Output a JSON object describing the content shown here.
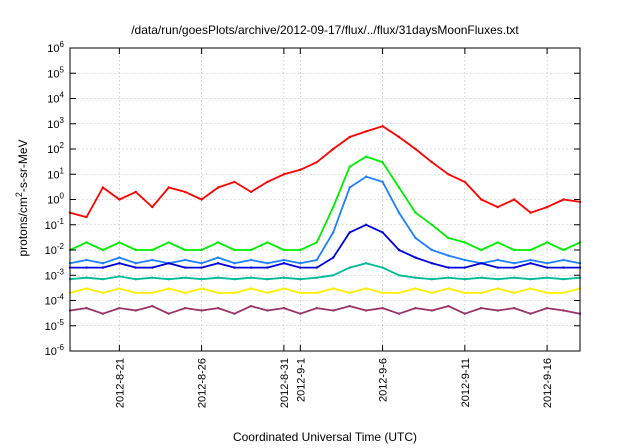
{
  "chart_data": {
    "type": "line",
    "title": "/data/run/goesPlots/archive/2012-09-17/flux/../flux/31daysMoonFluxes.txt",
    "xlabel": "Coordinated Universal Time (UTC)",
    "ylabel": {
      "pre": "protons/cm",
      "sup": "2",
      "post": "-s-sr-MeV"
    },
    "y_scale": "log",
    "ylim": [
      1e-06,
      1000000.0
    ],
    "y_ticks": [
      {
        "value": 1e-06,
        "base": "10",
        "exp": "-6"
      },
      {
        "value": 1e-05,
        "base": "10",
        "exp": "-5"
      },
      {
        "value": 0.0001,
        "base": "10",
        "exp": "-4"
      },
      {
        "value": 0.001,
        "base": "10",
        "exp": "-3"
      },
      {
        "value": 0.01,
        "base": "10",
        "exp": "-2"
      },
      {
        "value": 0.1,
        "base": "10",
        "exp": "-1"
      },
      {
        "value": 1.0,
        "base": "10",
        "exp": "0"
      },
      {
        "value": 10.0,
        "base": "10",
        "exp": "1"
      },
      {
        "value": 100.0,
        "base": "10",
        "exp": "2"
      },
      {
        "value": 1000.0,
        "base": "10",
        "exp": "3"
      },
      {
        "value": 10000.0,
        "base": "10",
        "exp": "4"
      },
      {
        "value": 100000.0,
        "base": "10",
        "exp": "5"
      },
      {
        "value": 1000000.0,
        "base": "10",
        "exp": "6"
      }
    ],
    "xlim": [
      "2012-08-18",
      "2012-09-18"
    ],
    "x_ticks": [
      {
        "date": "2012-08-21",
        "label": "2012-8-21"
      },
      {
        "date": "2012-08-26",
        "label": "2012-8-26"
      },
      {
        "date": "2012-08-31",
        "label": "2012-8-31"
      },
      {
        "date": "2012-09-01",
        "label": "2012-9-1"
      },
      {
        "date": "2012-09-06",
        "label": "2012-9-6"
      },
      {
        "date": "2012-09-11",
        "label": "2012-9-11"
      },
      {
        "date": "2012-09-16",
        "label": "2012-9-16"
      }
    ],
    "grid": true,
    "series": [
      {
        "color": "#ff0000",
        "x": [
          "2012-08-18",
          "2012-08-19",
          "2012-08-20",
          "2012-08-21",
          "2012-08-22",
          "2012-08-23",
          "2012-08-24",
          "2012-08-25",
          "2012-08-26",
          "2012-08-27",
          "2012-08-28",
          "2012-08-29",
          "2012-08-30",
          "2012-08-31",
          "2012-09-01",
          "2012-09-02",
          "2012-09-03",
          "2012-09-04",
          "2012-09-05",
          "2012-09-06",
          "2012-09-07",
          "2012-09-08",
          "2012-09-09",
          "2012-09-10",
          "2012-09-11",
          "2012-09-12",
          "2012-09-13",
          "2012-09-14",
          "2012-09-15",
          "2012-09-16",
          "2012-09-17",
          "2012-09-18"
        ],
        "values": [
          0.3,
          0.2,
          3,
          1,
          2,
          0.5,
          3,
          2,
          1,
          3,
          5,
          2,
          5,
          10,
          15,
          30,
          100,
          300,
          500,
          800,
          300,
          100,
          30,
          10,
          5,
          1,
          0.5,
          1,
          0.3,
          0.5,
          1,
          0.8
        ]
      },
      {
        "color": "#00ee00",
        "x": [
          "2012-08-18",
          "2012-08-19",
          "2012-08-20",
          "2012-08-21",
          "2012-08-22",
          "2012-08-23",
          "2012-08-24",
          "2012-08-25",
          "2012-08-26",
          "2012-08-27",
          "2012-08-28",
          "2012-08-29",
          "2012-08-30",
          "2012-08-31",
          "2012-09-01",
          "2012-09-02",
          "2012-09-03",
          "2012-09-04",
          "2012-09-05",
          "2012-09-06",
          "2012-09-07",
          "2012-09-08",
          "2012-09-09",
          "2012-09-10",
          "2012-09-11",
          "2012-09-12",
          "2012-09-13",
          "2012-09-14",
          "2012-09-15",
          "2012-09-16",
          "2012-09-17",
          "2012-09-18"
        ],
        "values": [
          0.01,
          0.02,
          0.01,
          0.02,
          0.01,
          0.01,
          0.02,
          0.01,
          0.01,
          0.02,
          0.01,
          0.01,
          0.02,
          0.01,
          0.01,
          0.02,
          0.5,
          20,
          50,
          30,
          3,
          0.3,
          0.1,
          0.03,
          0.02,
          0.01,
          0.02,
          0.01,
          0.01,
          0.02,
          0.01,
          0.02
        ]
      },
      {
        "color": "#1e7fff",
        "x": [
          "2012-08-18",
          "2012-08-19",
          "2012-08-20",
          "2012-08-21",
          "2012-08-22",
          "2012-08-23",
          "2012-08-24",
          "2012-08-25",
          "2012-08-26",
          "2012-08-27",
          "2012-08-28",
          "2012-08-29",
          "2012-08-30",
          "2012-08-31",
          "2012-09-01",
          "2012-09-02",
          "2012-09-03",
          "2012-09-04",
          "2012-09-05",
          "2012-09-06",
          "2012-09-07",
          "2012-09-08",
          "2012-09-09",
          "2012-09-10",
          "2012-09-11",
          "2012-09-12",
          "2012-09-13",
          "2012-09-14",
          "2012-09-15",
          "2012-09-16",
          "2012-09-17",
          "2012-09-18"
        ],
        "values": [
          0.003,
          0.004,
          0.003,
          0.005,
          0.003,
          0.004,
          0.003,
          0.004,
          0.003,
          0.005,
          0.003,
          0.004,
          0.003,
          0.004,
          0.003,
          0.004,
          0.05,
          3,
          8,
          5,
          0.3,
          0.03,
          0.01,
          0.006,
          0.004,
          0.003,
          0.004,
          0.003,
          0.004,
          0.003,
          0.004,
          0.003
        ]
      },
      {
        "color": "#0000dd",
        "x": [
          "2012-08-18",
          "2012-08-19",
          "2012-08-20",
          "2012-08-21",
          "2012-08-22",
          "2012-08-23",
          "2012-08-24",
          "2012-08-25",
          "2012-08-26",
          "2012-08-27",
          "2012-08-28",
          "2012-08-29",
          "2012-08-30",
          "2012-08-31",
          "2012-09-01",
          "2012-09-02",
          "2012-09-03",
          "2012-09-04",
          "2012-09-05",
          "2012-09-06",
          "2012-09-07",
          "2012-09-08",
          "2012-09-09",
          "2012-09-10",
          "2012-09-11",
          "2012-09-12",
          "2012-09-13",
          "2012-09-14",
          "2012-09-15",
          "2012-09-16",
          "2012-09-17",
          "2012-09-18"
        ],
        "values": [
          0.002,
          0.002,
          0.002,
          0.003,
          0.002,
          0.002,
          0.003,
          0.002,
          0.002,
          0.003,
          0.002,
          0.002,
          0.002,
          0.003,
          0.002,
          0.002,
          0.005,
          0.05,
          0.1,
          0.05,
          0.01,
          0.005,
          0.003,
          0.002,
          0.002,
          0.003,
          0.002,
          0.002,
          0.003,
          0.002,
          0.002,
          0.002
        ]
      },
      {
        "color": "#00bb99",
        "x": [
          "2012-08-18",
          "2012-08-19",
          "2012-08-20",
          "2012-08-21",
          "2012-08-22",
          "2012-08-23",
          "2012-08-24",
          "2012-08-25",
          "2012-08-26",
          "2012-08-27",
          "2012-08-28",
          "2012-08-29",
          "2012-08-30",
          "2012-08-31",
          "2012-09-01",
          "2012-09-02",
          "2012-09-03",
          "2012-09-04",
          "2012-09-05",
          "2012-09-06",
          "2012-09-07",
          "2012-09-08",
          "2012-09-09",
          "2012-09-10",
          "2012-09-11",
          "2012-09-12",
          "2012-09-13",
          "2012-09-14",
          "2012-09-15",
          "2012-09-16",
          "2012-09-17",
          "2012-09-18"
        ],
        "values": [
          0.0007,
          0.0008,
          0.0007,
          0.0009,
          0.0007,
          0.0008,
          0.0007,
          0.0008,
          0.0007,
          0.0008,
          0.0007,
          0.0008,
          0.0007,
          0.0008,
          0.0007,
          0.0008,
          0.001,
          0.002,
          0.003,
          0.002,
          0.001,
          0.0008,
          0.0007,
          0.0008,
          0.0007,
          0.0008,
          0.0007,
          0.0008,
          0.0007,
          0.0008,
          0.0007,
          0.0008
        ]
      },
      {
        "color": "#ffee00",
        "x": [
          "2012-08-18",
          "2012-08-19",
          "2012-08-20",
          "2012-08-21",
          "2012-08-22",
          "2012-08-23",
          "2012-08-24",
          "2012-08-25",
          "2012-08-26",
          "2012-08-27",
          "2012-08-28",
          "2012-08-29",
          "2012-08-30",
          "2012-08-31",
          "2012-09-01",
          "2012-09-02",
          "2012-09-03",
          "2012-09-04",
          "2012-09-05",
          "2012-09-06",
          "2012-09-07",
          "2012-09-08",
          "2012-09-09",
          "2012-09-10",
          "2012-09-11",
          "2012-09-12",
          "2012-09-13",
          "2012-09-14",
          "2012-09-15",
          "2012-09-16",
          "2012-09-17",
          "2012-09-18"
        ],
        "values": [
          0.0002,
          0.0003,
          0.0002,
          0.0003,
          0.0002,
          0.0002,
          0.0003,
          0.0002,
          0.0003,
          0.0002,
          0.0002,
          0.0003,
          0.0002,
          0.0003,
          0.0002,
          0.0002,
          0.0003,
          0.0002,
          0.0003,
          0.0002,
          0.0002,
          0.0003,
          0.0002,
          0.0003,
          0.0002,
          0.0002,
          0.0003,
          0.0002,
          0.0003,
          0.0002,
          0.0002,
          0.0003
        ]
      },
      {
        "color": "#993366",
        "x": [
          "2012-08-18",
          "2012-08-19",
          "2012-08-20",
          "2012-08-21",
          "2012-08-22",
          "2012-08-23",
          "2012-08-24",
          "2012-08-25",
          "2012-08-26",
          "2012-08-27",
          "2012-08-28",
          "2012-08-29",
          "2012-08-30",
          "2012-08-31",
          "2012-09-01",
          "2012-09-02",
          "2012-09-03",
          "2012-09-04",
          "2012-09-05",
          "2012-09-06",
          "2012-09-07",
          "2012-09-08",
          "2012-09-09",
          "2012-09-10",
          "2012-09-11",
          "2012-09-12",
          "2012-09-13",
          "2012-09-14",
          "2012-09-15",
          "2012-09-16",
          "2012-09-17",
          "2012-09-18"
        ],
        "values": [
          4e-05,
          5e-05,
          3e-05,
          5e-05,
          4e-05,
          6e-05,
          3e-05,
          5e-05,
          4e-05,
          5e-05,
          3e-05,
          6e-05,
          4e-05,
          5e-05,
          3e-05,
          5e-05,
          4e-05,
          6e-05,
          4e-05,
          5e-05,
          3e-05,
          5e-05,
          4e-05,
          6e-05,
          3e-05,
          5e-05,
          4e-05,
          5e-05,
          3e-05,
          5e-05,
          4e-05,
          3e-05
        ]
      }
    ]
  }
}
